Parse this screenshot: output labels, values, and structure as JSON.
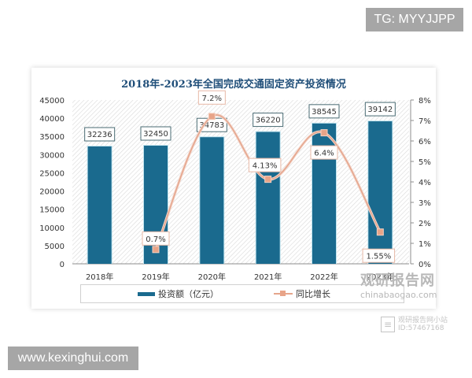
{
  "overlay": {
    "top_badge": "TG: MYYJJPP",
    "bottom_badge": "www.kexinghui.com"
  },
  "watermark": {
    "brand_cn": "观研报告网",
    "brand_en": "chinabaogao.com",
    "mini_line1": "观研报告网小站",
    "mini_line2": "ID:57467168"
  },
  "chart_data": {
    "type": "bar+line",
    "title": "2018年-2023年全国完成交通固定资产投资情况",
    "categories": [
      "2018年",
      "2019年",
      "2020年",
      "2021年",
      "2022年",
      "2023年"
    ],
    "series": [
      {
        "name": "投资额（亿元）",
        "type": "bar",
        "axis": "left",
        "color": "#1a6a8e",
        "values": [
          32236,
          32450,
          34783,
          36220,
          38545,
          39142
        ],
        "labels": [
          "32236",
          "32450",
          "34783",
          "36220",
          "38545",
          "39142"
        ]
      },
      {
        "name": "同比增长",
        "type": "line",
        "axis": "right",
        "color": "#e5a58c",
        "values": [
          null,
          0.7,
          7.2,
          4.13,
          6.4,
          1.55
        ],
        "labels": [
          "",
          "0.7%",
          "7.2%",
          "4.13%",
          "6.4%",
          "1.55%"
        ]
      }
    ],
    "y_left": {
      "ylim": [
        0,
        45000
      ],
      "ticks": [
        "45000",
        "40000",
        "35000",
        "30000",
        "25000",
        "20000",
        "15000",
        "10000",
        "5000",
        "0"
      ]
    },
    "y_right": {
      "ylim": [
        0,
        8
      ],
      "ticks": [
        "8%",
        "7%",
        "6%",
        "5%",
        "4%",
        "3%",
        "2%",
        "1%",
        "0%"
      ]
    },
    "xlabel": "",
    "ylabel": "",
    "legend": {
      "position": "bottom",
      "items": [
        "投资额（亿元）",
        "同比增长"
      ]
    },
    "grid": false,
    "background_pattern": "diagonal-hatch"
  }
}
